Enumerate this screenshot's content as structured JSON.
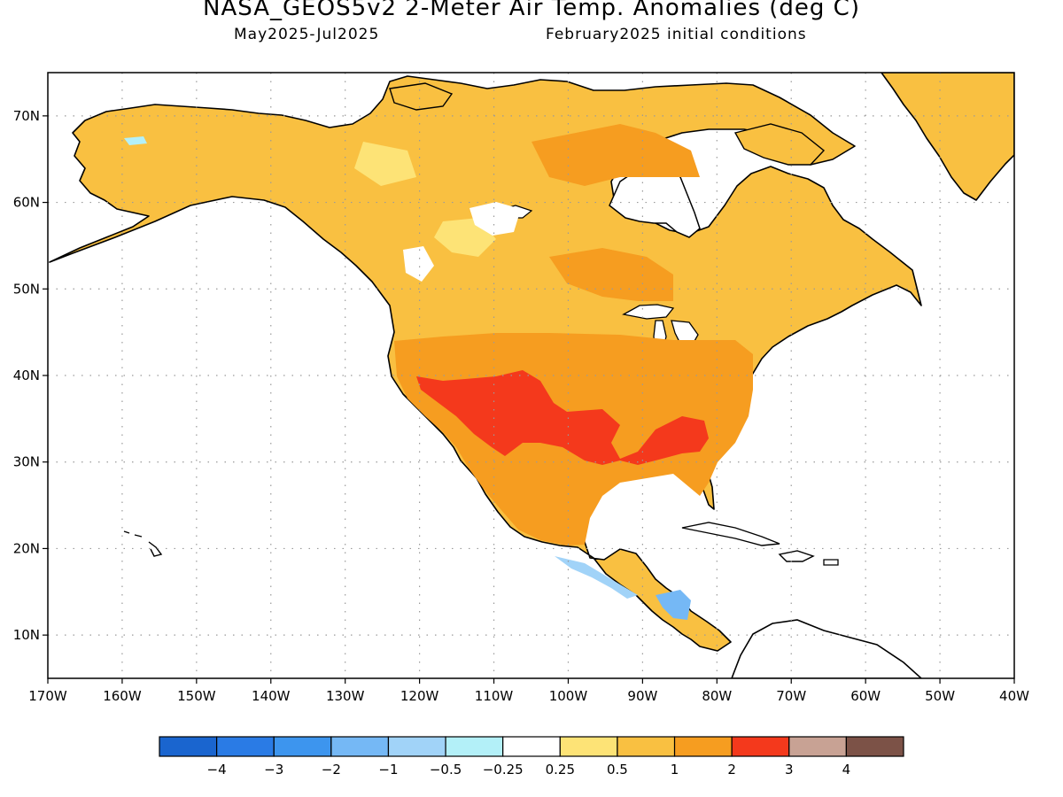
{
  "header": {
    "title": "NASA_GEOS5v2 2-Meter Air Temp. Anomalies (deg C)",
    "period": "May2025-Jul2025",
    "initial_conditions": "February2025 initial conditions"
  },
  "map": {
    "projection": "equirectangular",
    "lon_range": [
      -170,
      -40
    ],
    "lat_range": [
      5,
      75
    ],
    "grid": true,
    "lat_ticks": [
      "10N",
      "20N",
      "30N",
      "40N",
      "50N",
      "60N",
      "70N"
    ],
    "lon_ticks": [
      "170W",
      "160W",
      "150W",
      "140W",
      "130W",
      "120W",
      "110W",
      "100W",
      "90W",
      "80W",
      "70W",
      "60W",
      "50W",
      "40W"
    ],
    "colors": {
      "land_anomaly_default": "#f9c041",
      "ocean": "#ffffff",
      "coastline": "#000000",
      "grid": "#9a9a9a"
    }
  },
  "colorbar": {
    "labels": [
      "-4",
      "-3",
      "-2",
      "-1",
      "-0.5",
      "-0.25",
      "0.25",
      "0.5",
      "1",
      "2",
      "3",
      "4"
    ],
    "colors": [
      "#1a65cf",
      "#2a7be5",
      "#3d95ee",
      "#75b8f5",
      "#a1d3f8",
      "#b3f0f8",
      "#ffffff",
      "#fde376",
      "#f9c041",
      "#f69d20",
      "#f4391c",
      "#c8a294",
      "#7c5247"
    ]
  }
}
